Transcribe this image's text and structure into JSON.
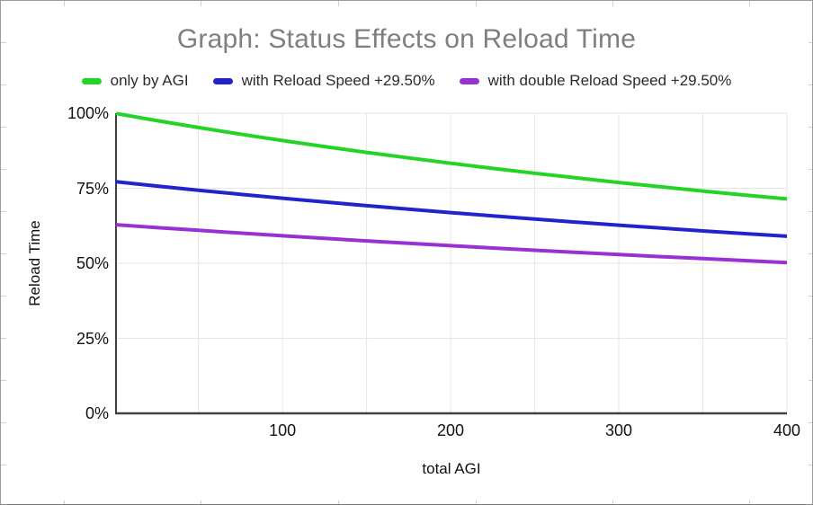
{
  "chart": {
    "title": "Graph: Status Effects on Reload Time",
    "legend": {
      "items": [
        {
          "label": "only by AGI",
          "color": "#24d424"
        },
        {
          "label": "with Reload Speed +29.50%",
          "color": "#2323cc"
        },
        {
          "label": "with double Reload Speed +29.50%",
          "color": "#9930d1"
        }
      ]
    },
    "x_axis": {
      "title": "total AGI",
      "tick_labels": [
        "100",
        "200",
        "300",
        "400"
      ],
      "tick_values": [
        100,
        200,
        300,
        400
      ]
    },
    "y_axis": {
      "title": "Reload Time",
      "tick_labels": [
        "0%",
        "25%",
        "50%",
        "75%",
        "100%"
      ],
      "tick_values": [
        0,
        25,
        50,
        75,
        100
      ]
    }
  },
  "chart_data": {
    "type": "line",
    "title": "Graph: Status Effects on Reload Time",
    "xlabel": "total AGI",
    "ylabel": "Reload Time",
    "xlim": [
      1,
      400
    ],
    "ylim": [
      0,
      100
    ],
    "grid": true,
    "x_gridline_step": 50,
    "legend_position": "top",
    "x": [
      1,
      25,
      50,
      75,
      100,
      125,
      150,
      175,
      200,
      225,
      250,
      275,
      300,
      325,
      350,
      375,
      400
    ],
    "series": [
      {
        "name": "only by AGI",
        "color": "#24d424",
        "values": [
          99.9,
          97.56,
          95.24,
          93.02,
          90.91,
          88.89,
          86.96,
          85.11,
          83.33,
          81.63,
          80.0,
          78.43,
          76.92,
          75.47,
          74.07,
          72.73,
          71.43
        ]
      },
      {
        "name": "with Reload Speed +29.50%",
        "color": "#2323cc",
        "values": [
          77.16,
          75.76,
          74.35,
          72.99,
          71.68,
          70.42,
          69.2,
          68.03,
          66.89,
          65.79,
          64.72,
          63.69,
          62.7,
          61.73,
          60.79,
          59.88,
          59.0
        ]
      },
      {
        "name": "with double Reload Speed +29.50%",
        "color": "#9930d1",
        "values": [
          62.85,
          61.92,
          60.98,
          60.06,
          59.17,
          58.31,
          57.47,
          56.66,
          55.87,
          55.1,
          54.35,
          53.62,
          52.91,
          52.22,
          51.55,
          50.89,
          50.25
        ]
      }
    ]
  },
  "colors": {
    "grid": "#e6e6e6",
    "axis_bottom": "#424242",
    "axis_left": "#000000",
    "title_text": "#7f7f7f",
    "tick_text": "#111111",
    "frame_border": "#9b9b9b",
    "stub": "#cfcfcf",
    "background": "#ffffff"
  }
}
